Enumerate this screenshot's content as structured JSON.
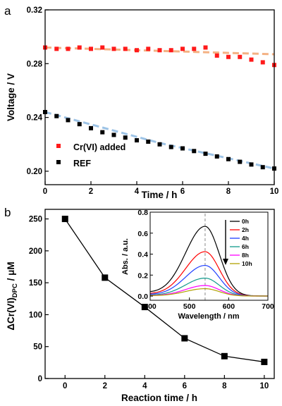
{
  "chart_data": [
    {
      "panel_label": "a",
      "type": "scatter",
      "xlabel": "Time / h",
      "ylabel": "Voltage / V",
      "xlim": [
        0,
        10
      ],
      "ylim": [
        0.19,
        0.32
      ],
      "x_ticks": [
        "0",
        "2",
        "4",
        "6",
        "8",
        "10"
      ],
      "y_ticks": [
        "0.20",
        "0.24",
        "0.28",
        "0.32"
      ],
      "legend_position": "bottom-left",
      "series": [
        {
          "name": "Cr(VI) added",
          "color": "#ff1a1a",
          "marker": "square",
          "fit_color": "#f4b183",
          "x": [
            0,
            0.5,
            1,
            1.5,
            2,
            2.5,
            3,
            3.5,
            4,
            4.5,
            5,
            5.5,
            6,
            6.5,
            7,
            7.5,
            8,
            8.5,
            9,
            9.5,
            10
          ],
          "y": [
            0.292,
            0.291,
            0.291,
            0.292,
            0.291,
            0.292,
            0.291,
            0.291,
            0.29,
            0.291,
            0.29,
            0.29,
            0.291,
            0.291,
            0.292,
            0.286,
            0.285,
            0.285,
            0.283,
            0.281,
            0.279
          ],
          "fit": [
            [
              0,
              0.292
            ],
            [
              10,
              0.287
            ]
          ]
        },
        {
          "name": "REF",
          "color": "#000000",
          "marker": "square",
          "fit_color": "#9dc3e6",
          "x": [
            0,
            0.5,
            1,
            1.5,
            2,
            2.5,
            3,
            3.5,
            4,
            4.5,
            5,
            5.5,
            6,
            6.5,
            7,
            7.5,
            8,
            8.5,
            9,
            9.5,
            10
          ],
          "y": [
            0.244,
            0.241,
            0.238,
            0.235,
            0.232,
            0.229,
            0.227,
            0.225,
            0.223,
            0.222,
            0.22,
            0.218,
            0.217,
            0.215,
            0.213,
            0.211,
            0.209,
            0.207,
            0.205,
            0.203,
            0.202
          ],
          "fit": [
            [
              0,
              0.244
            ],
            [
              5,
              0.221
            ],
            [
              10,
              0.202
            ]
          ]
        }
      ]
    },
    {
      "panel_label": "b",
      "type": "line",
      "xlabel": "Reaction time / h",
      "ylabel_main": "ΔCr(VI)",
      "ylabel_sub": "DPC",
      "ylabel_unit": " / μM",
      "xlim": [
        -1,
        10.5
      ],
      "ylim": [
        0,
        265
      ],
      "x_ticks": [
        "0",
        "2",
        "4",
        "6",
        "8",
        "10"
      ],
      "y_ticks": [
        "0",
        "50",
        "100",
        "150",
        "200",
        "250"
      ],
      "series": [
        {
          "name": "",
          "color": "#000000",
          "marker": "square",
          "x": [
            0,
            2,
            4,
            6,
            8,
            10
          ],
          "y": [
            250,
            158,
            112,
            63,
            35,
            26
          ]
        }
      ],
      "inset": {
        "type": "line",
        "xlabel": "Wavelength / nm",
        "ylabel": "Abs. / a.u.",
        "xlim": [
          400,
          700
        ],
        "ylim": [
          -0.04,
          0.8
        ],
        "x_ticks": [
          "400",
          "500",
          "600",
          "700"
        ],
        "y_ticks": [
          "0.0",
          "0.2",
          "0.4",
          "0.6",
          "0.8"
        ],
        "peak_wavelength": 540,
        "legend_position": "top-right",
        "series": [
          {
            "name": "0h",
            "color": "#000000",
            "peak": 0.66
          },
          {
            "name": "2h",
            "color": "#ff0000",
            "peak": 0.42
          },
          {
            "name": "4h",
            "color": "#1f3fff",
            "peak": 0.29
          },
          {
            "name": "6h",
            "color": "#119a8c",
            "peak": 0.17
          },
          {
            "name": "8h",
            "color": "#ff00ff",
            "peak": 0.1
          },
          {
            "name": "10h",
            "color": "#b0a000",
            "peak": 0.07
          }
        ]
      }
    }
  ]
}
